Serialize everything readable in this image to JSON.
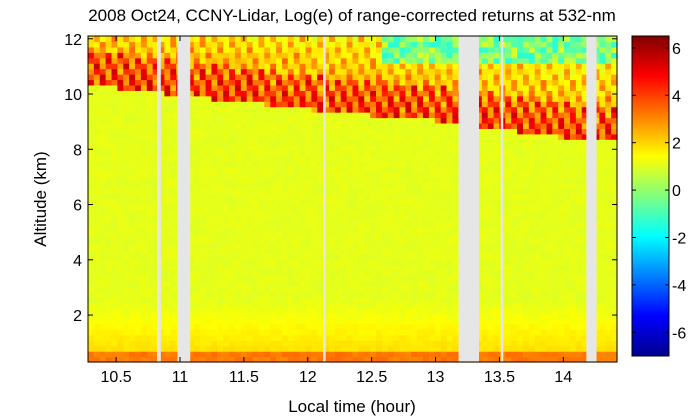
{
  "chart_data": {
    "type": "heatmap",
    "title": "2008 Oct24, CCNY-Lidar, Log(e) of range-corrected returns at 532-nm",
    "xlabel": "Local time (hour)",
    "ylabel": "Altitude (km)",
    "xlim": [
      10.28,
      14.42
    ],
    "ylim": [
      0.3,
      12.1
    ],
    "x_ticks": [
      10.5,
      11,
      11.5,
      12,
      12.5,
      13,
      13.5,
      14
    ],
    "x_tick_labels": [
      "10.5",
      "11",
      "11.5",
      "12",
      "12.5",
      "13",
      "13.5",
      "14"
    ],
    "y_ticks": [
      2,
      4,
      6,
      8,
      10,
      12
    ],
    "y_tick_labels": [
      "2",
      "4",
      "6",
      "8",
      "10",
      "12"
    ],
    "colorbar": {
      "range": [
        -7,
        6.5
      ],
      "ticks": [
        -6,
        -4,
        -2,
        0,
        2,
        4,
        6
      ],
      "tick_labels": [
        "-6",
        "-4",
        "-2",
        "0",
        "2",
        "4",
        "6"
      ],
      "colormap": "jet"
    },
    "data_gaps_hours": [
      [
        10.82,
        10.85
      ],
      [
        10.98,
        11.08
      ],
      [
        12.12,
        12.14
      ],
      [
        13.18,
        13.34
      ],
      [
        13.51,
        13.53
      ],
      [
        14.18,
        14.26
      ]
    ],
    "layers": {
      "boundary_layer_top_km": 0.6,
      "boundary_layer_value": 3.0,
      "free_troposphere_value": 1.0,
      "cirrus_base_km": [
        {
          "t": 10.3,
          "z": 10.5
        },
        {
          "t": 12.0,
          "z": 9.6
        },
        {
          "t": 13.0,
          "z": 9.2
        },
        {
          "t": 14.15,
          "z": 8.5
        }
      ],
      "cirrus_value_max": 5.5
    }
  }
}
